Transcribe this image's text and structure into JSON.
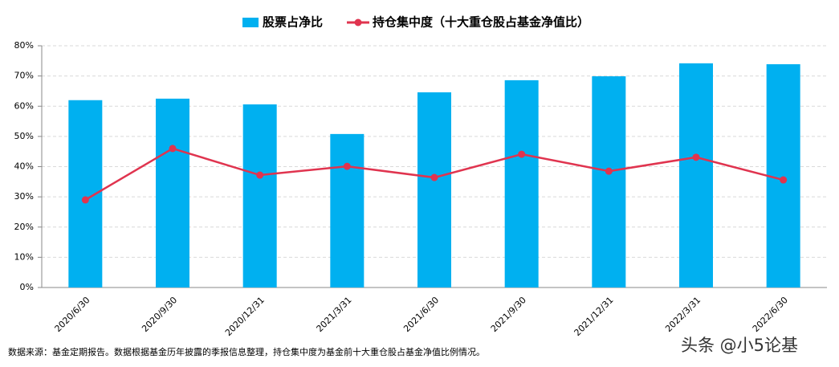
{
  "chart_data": {
    "type": "bar-line",
    "categories": [
      "2020/6/30",
      "2020/9/30",
      "2020/12/31",
      "2021/3/31",
      "2021/6/30",
      "2021/9/30",
      "2021/12/31",
      "2022/3/31",
      "2022/6/30"
    ],
    "series": [
      {
        "name": "股票占净比",
        "type": "bar",
        "color": "#00b0f0",
        "values": [
          62.0,
          62.5,
          60.6,
          50.8,
          64.6,
          68.6,
          69.9,
          74.2,
          73.9
        ]
      },
      {
        "name": "持仓集中度（十大重仓股占基金净值比）",
        "type": "line",
        "color": "#e0344f",
        "values": [
          29.0,
          46.0,
          37.2,
          40.1,
          36.4,
          44.1,
          38.5,
          43.1,
          35.6
        ]
      }
    ],
    "ylim": [
      0,
      80
    ],
    "yticks": [
      {
        "value": 0,
        "label": "0%"
      },
      {
        "value": 10,
        "label": "10%"
      },
      {
        "value": 20,
        "label": "20%"
      },
      {
        "value": 30,
        "label": "30%"
      },
      {
        "value": 40,
        "label": "40%"
      },
      {
        "value": 50,
        "label": "50%"
      },
      {
        "value": 60,
        "label": "60%"
      },
      {
        "value": 70,
        "label": "70%"
      },
      {
        "value": 80,
        "label": "80%"
      }
    ],
    "grid": true,
    "legend": "top",
    "footnote": "数据来源：基金定期报告。数据根据基金历年披露的季报信息整理，持仓集中度为基金前十大重仓股占基金净值比例情况。",
    "watermark": "头条 @小5论基"
  }
}
